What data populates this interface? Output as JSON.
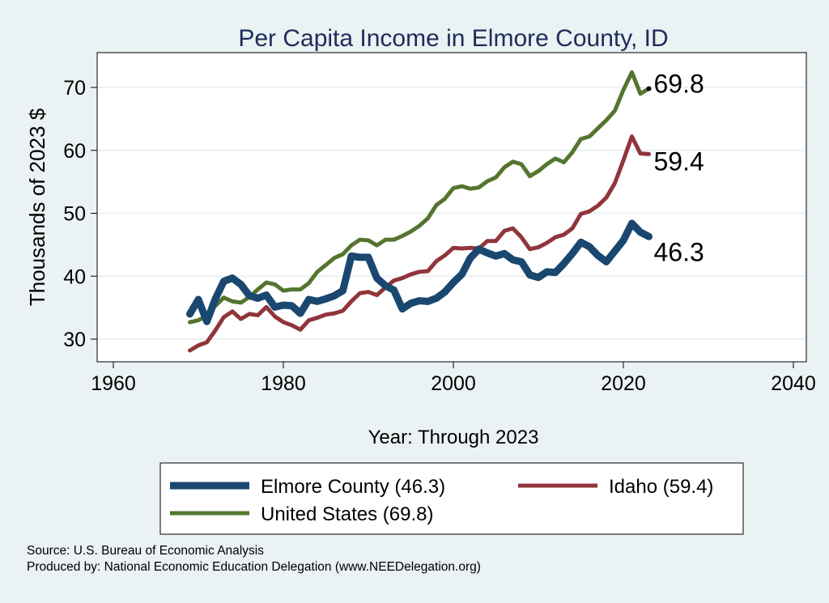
{
  "chart_data": {
    "type": "line",
    "title": "Per Capita Income in Elmore County, ID",
    "xlabel": "Year: Through 2023",
    "ylabel": "Thousands of 2023 $",
    "xlim": [
      1960,
      2040
    ],
    "ylim": [
      26,
      75
    ],
    "xticks": [
      1960,
      1980,
      2000,
      2020,
      2040
    ],
    "yticks": [
      30,
      40,
      50,
      60,
      70
    ],
    "grid": true,
    "legend_position": "bottom",
    "x": [
      1969,
      1970,
      1971,
      1972,
      1973,
      1974,
      1975,
      1976,
      1977,
      1978,
      1979,
      1980,
      1981,
      1982,
      1983,
      1984,
      1985,
      1986,
      1987,
      1988,
      1989,
      1990,
      1991,
      1992,
      1993,
      1994,
      1995,
      1996,
      1997,
      1998,
      1999,
      2000,
      2001,
      2002,
      2003,
      2004,
      2005,
      2006,
      2007,
      2008,
      2009,
      2010,
      2011,
      2012,
      2013,
      2014,
      2015,
      2016,
      2017,
      2018,
      2019,
      2020,
      2021,
      2022,
      2023
    ],
    "series": [
      {
        "name": "Elmore County (46.3)",
        "color": "#1a476f",
        "end_label": "46.3",
        "values": [
          34.0,
          36.3,
          32.8,
          36.4,
          39.2,
          39.7,
          38.7,
          36.9,
          36.5,
          37.0,
          35.1,
          35.4,
          35.3,
          34.1,
          36.3,
          36.0,
          36.4,
          36.9,
          37.7,
          43.2,
          43.0,
          43.0,
          39.7,
          38.5,
          37.8,
          34.8,
          35.7,
          36.1,
          36.0,
          36.5,
          37.5,
          39.0,
          40.3,
          42.9,
          44.3,
          43.7,
          43.2,
          43.6,
          42.6,
          42.3,
          40.2,
          39.8,
          40.7,
          40.6,
          42.0,
          43.6,
          45.4,
          44.7,
          43.3,
          42.3,
          44.0,
          45.7,
          48.4,
          47.0,
          46.3
        ]
      },
      {
        "name": "Idaho (59.4)",
        "color": "#90353b",
        "end_label": "59.4",
        "values": [
          28.2,
          29.0,
          29.5,
          31.4,
          33.5,
          34.4,
          33.2,
          34.0,
          33.8,
          35.1,
          33.6,
          32.7,
          32.2,
          31.5,
          33.0,
          33.4,
          33.9,
          34.1,
          34.5,
          36.0,
          37.3,
          37.5,
          37.0,
          38.2,
          39.3,
          39.7,
          40.3,
          40.7,
          40.8,
          42.4,
          43.3,
          44.5,
          44.4,
          44.5,
          44.4,
          45.6,
          45.6,
          47.2,
          47.6,
          46.2,
          44.3,
          44.6,
          45.3,
          46.2,
          46.6,
          47.6,
          49.9,
          50.3,
          51.2,
          52.5,
          54.8,
          58.4,
          62.2,
          59.5,
          59.4
        ]
      },
      {
        "name": "United States (69.8)",
        "color": "#55752f",
        "end_label": "69.8",
        "values": [
          32.7,
          33.0,
          33.7,
          35.3,
          36.6,
          36.0,
          35.8,
          36.7,
          37.9,
          39.0,
          38.7,
          37.7,
          37.9,
          37.9,
          38.9,
          40.7,
          41.8,
          42.9,
          43.5,
          44.9,
          45.8,
          45.7,
          44.9,
          45.8,
          45.8,
          46.4,
          47.1,
          48.0,
          49.2,
          51.3,
          52.3,
          54.0,
          54.3,
          53.9,
          54.1,
          55.1,
          55.7,
          57.3,
          58.2,
          57.8,
          55.9,
          56.7,
          57.8,
          58.7,
          58.1,
          59.7,
          61.8,
          62.2,
          63.5,
          64.8,
          66.3,
          69.6,
          72.4,
          69.0,
          69.8
        ]
      }
    ]
  },
  "footer": {
    "source": "Source: U.S. Bureau of Economic Analysis",
    "produced": "Produced by: National Economic Education Delegation (www.NEEDelegation.org)"
  }
}
